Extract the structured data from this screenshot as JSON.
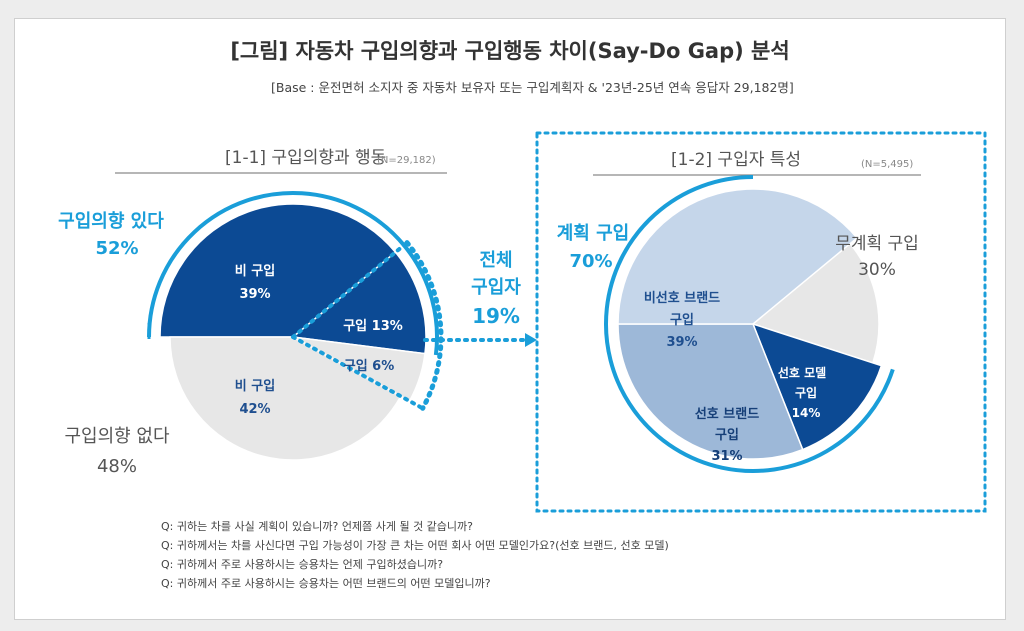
{
  "title": "[그림] 자동차 구입의향과 구입행동 차이(Say-Do Gap) 분석",
  "base_note": "[Base : 운전면허 소지자 중 자동차 보유자 또는 구입계획자 & '23년-25년 연속 응답자 29,182명]",
  "colors": {
    "navy": "#0c4a94",
    "light_blue": "#c5d6ea",
    "mid_blue": "#9db8d8",
    "light_gray": "#e7e7e7",
    "cyan": "#1a9ed9",
    "dark_text": "#444444"
  },
  "section_1": {
    "title": "[1-1] 구입의향과 행동",
    "n": "(N=29,182)"
  },
  "section_2": {
    "title": "[1-2] 구입자 특성",
    "n": "(N=5,495)"
  },
  "connector": {
    "line1": "전체",
    "line2": "구입자",
    "line3": "19%"
  },
  "questions": [
    "Q: 귀하는 차를 사실 계획이 있습니까? 언제쯤 사게 될 것 같습니까?",
    "Q: 귀하께서는 차를 사신다면 구입 가능성이 가장 큰 차는 어떤 회사 어떤 모델인가요?(선호 브랜드, 선호 모델)",
    "Q: 귀하께서 주로 사용하시는 승용차는 언제 구입하셨습니까?",
    "Q: 귀하께서 주로 사용하시는 승용차는 어떤 브랜드의 어떤 모델입니까?"
  ],
  "chart_data": [
    {
      "type": "pie",
      "title": "[1-1] 구입의향과 행동",
      "n": "(N=29,182)",
      "groups": [
        {
          "name": "구입의향 있다",
          "value": 52,
          "label": "52%"
        },
        {
          "name": "구입의향 없다",
          "value": 48,
          "label": "48%"
        }
      ],
      "slices": [
        {
          "group": "구입의향 있다",
          "name": "비 구입",
          "value": 39,
          "label": "39%",
          "color": "#0c4a94"
        },
        {
          "group": "구입의향 있다",
          "name": "구입",
          "value": 13,
          "label": "13%",
          "color": "#0c4a94"
        },
        {
          "group": "구입의향 없다",
          "name": "구입",
          "value": 6,
          "label": "6%",
          "color": "#e7e7e7"
        },
        {
          "group": "구입의향 없다",
          "name": "비 구입",
          "value": 42,
          "label": "42%",
          "color": "#e7e7e7"
        }
      ],
      "highlight": {
        "name": "전체 구입자",
        "value": 19,
        "label": "19%"
      }
    },
    {
      "type": "pie",
      "title": "[1-2] 구입자 특성",
      "n": "(N=5,495)",
      "groups": [
        {
          "name": "계획 구입",
          "value": 70,
          "label": "70%"
        },
        {
          "name": "무계획 구입",
          "value": 30,
          "label": "30%"
        }
      ],
      "slices": [
        {
          "group": "계획 구입",
          "name": "비선호 브랜드 구입",
          "value": 39,
          "label": "39%",
          "color": "#c5d6ea"
        },
        {
          "group": "계획 구입",
          "name": "선호 브랜드 구입",
          "value": 31,
          "label": "31%",
          "color": "#9db8d8"
        },
        {
          "group": "계획 구입",
          "name": "선호 모델 구입",
          "value": 14,
          "label": "14%",
          "color": "#0c4a94"
        },
        {
          "group": "무계획 구입",
          "name": "무계획 구입",
          "value": 30,
          "label": "30%",
          "color": "#e7e7e7"
        }
      ]
    }
  ],
  "labels": {
    "pie1_intent_yes": "구입의향 있다",
    "pie1_intent_yes_pct": "52%",
    "pie1_intent_no": "구입의향 없다",
    "pie1_intent_no_pct": "48%",
    "pie1_s1_name": "비 구입",
    "pie1_s1_pct": "39%",
    "pie1_s2_text": "구입 13%",
    "pie1_s3_text": "구입 6%",
    "pie1_s4_name": "비 구입",
    "pie1_s4_pct": "42%",
    "pie2_plan": "계획 구입",
    "pie2_plan_pct": "70%",
    "pie2_noplan": "무계획 구입",
    "pie2_noplan_pct": "30%",
    "pie2_nonpref_l1": "비선호 브랜드",
    "pie2_nonpref_l2": "구입",
    "pie2_nonpref_pct": "39%",
    "pie2_prefbrand_l1": "선호 브랜드",
    "pie2_prefbrand_l2": "구입",
    "pie2_prefbrand_pct": "31%",
    "pie2_prefmodel_l1": "선호 모델",
    "pie2_prefmodel_l2": "구입",
    "pie2_prefmodel_pct": "14%"
  }
}
